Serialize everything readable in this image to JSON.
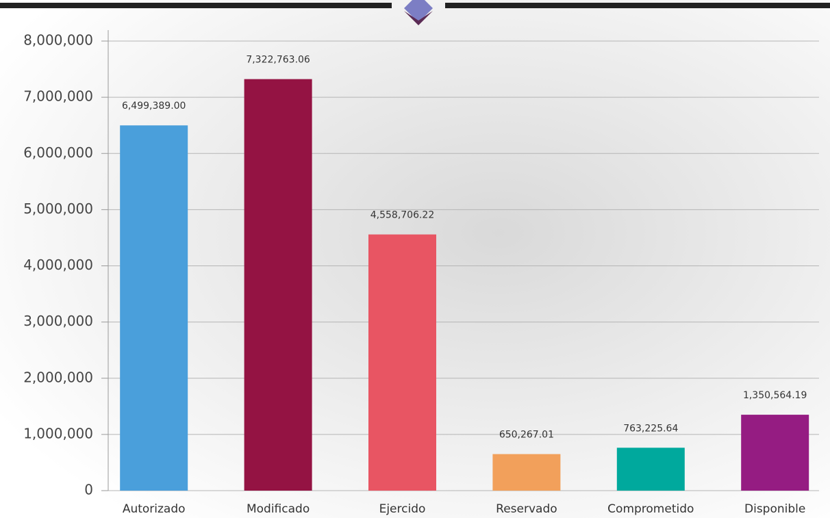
{
  "chart_data": {
    "type": "bar",
    "categories": [
      "Autorizado",
      "Modificado",
      "Ejercido",
      "Reservado",
      "Comprometido",
      "Disponible"
    ],
    "values": [
      6499389.0,
      7322763.06,
      4558706.22,
      650267.01,
      763225.64,
      1350564.19
    ],
    "value_labels": [
      "6,499,389.00",
      "7,322,763.06",
      "4,558,706.22",
      "650,267.01",
      "763,225.64",
      "1,350,564.19"
    ],
    "colors": [
      "#4a9fdb",
      "#941343",
      "#e85563",
      "#f2a05b",
      "#00a99d",
      "#951c82"
    ],
    "ylim": [
      0,
      8000000
    ],
    "yticks": [
      0,
      {
        "value": 1000000,
        "label": "1,000,000"
      },
      {
        "value": 2000000,
        "label": "2,000,000"
      },
      {
        "value": 3000000,
        "label": "3,000,000"
      },
      {
        "value": 4000000,
        "label": "4,000,000"
      },
      {
        "value": 5000000,
        "label": "5,000,000"
      },
      {
        "value": 6000000,
        "label": "6,000,000"
      },
      {
        "value": 7000000,
        "label": "7,000,000"
      },
      {
        "value": 8000000,
        "label": "8,000,000"
      }
    ],
    "grid": true
  }
}
